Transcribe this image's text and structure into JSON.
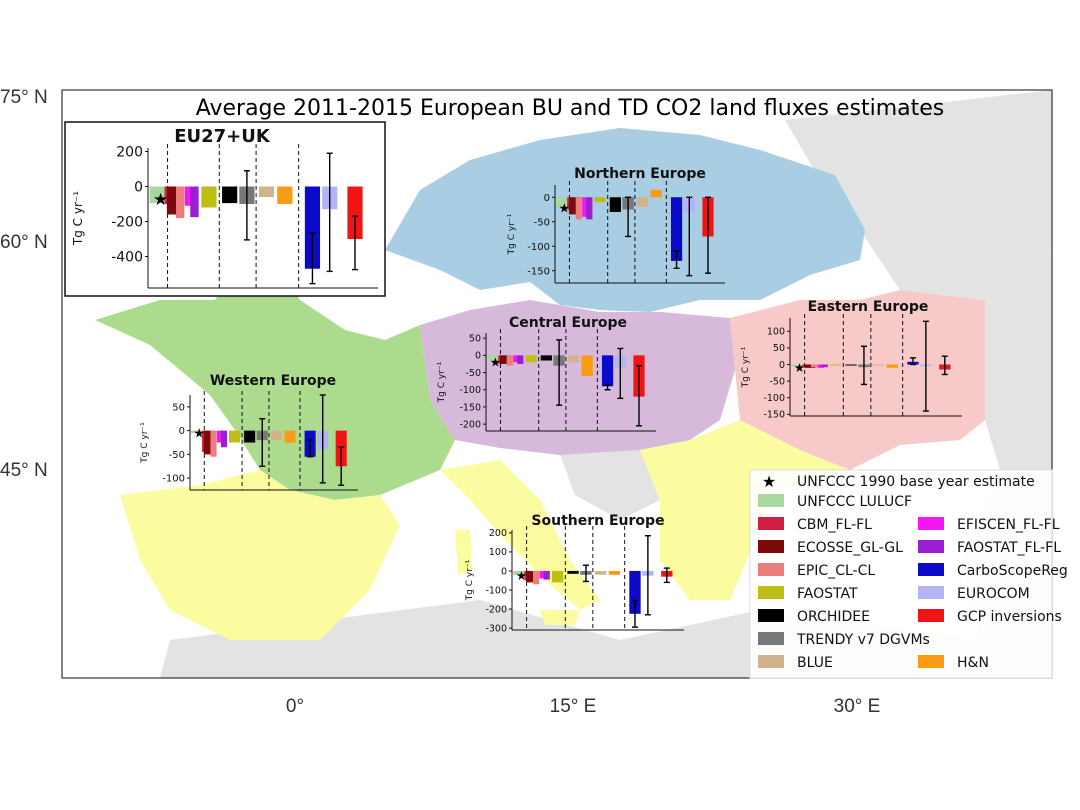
{
  "colors": {
    "ocean": "#ffffff",
    "outside": "#e3e3e3",
    "regions": {
      "Northern Europe": "#a9cde3",
      "Central Europe": "#d7b9dc",
      "Eastern Europe": "#f7c9c9",
      "Western Europe": "#addb8e",
      "Southern Europe": "#fbfba0"
    }
  },
  "map": {
    "title": "Average 2011-2015 European BU and TD CO2 land fluxes estimates",
    "lat_labels": [
      "75° N",
      "60° N",
      "45° N"
    ],
    "lon_labels": [
      "0°",
      "15° E",
      "30° E"
    ]
  },
  "legend": {
    "star_label": "UNFCCC 1990 base year estimate",
    "items": [
      {
        "label": "UNFCCC LULUCF",
        "color": "#a8d8a0"
      },
      {
        "label": "CBM_FL-FL",
        "color": "#d21e46"
      },
      {
        "label": "EFISCEN_FL-FL",
        "color": "#f516f5"
      },
      {
        "label": "ECOSSE_GL-GL",
        "color": "#7d0a0a"
      },
      {
        "label": "FAOSTAT_FL-FL",
        "color": "#9a1ed2"
      },
      {
        "label": "EPIC_CL-CL",
        "color": "#eb7d7d"
      },
      {
        "label": "CarboScopeReg",
        "color": "#0a0ac8"
      },
      {
        "label": "FAOSTAT",
        "color": "#bebe14"
      },
      {
        "label": "EUROCOM",
        "color": "#b4b4f5"
      },
      {
        "label": "ORCHIDEE",
        "color": "#000000"
      },
      {
        "label": "GCP inversions",
        "color": "#f01414"
      },
      {
        "label": "TRENDY v7 DGVMs",
        "color": "#787878"
      },
      {
        "label": "BLUE",
        "color": "#d2b48c"
      },
      {
        "label": "H&N",
        "color": "#fa9b14"
      }
    ]
  },
  "chart_data": [
    {
      "type": "bar",
      "title": "EU27+UK",
      "ylabel": "Tg C yr⁻¹",
      "ylim": [
        -580,
        220
      ],
      "yticks": [
        200,
        0,
        -200,
        -400
      ],
      "star": -70,
      "categories": [
        "UNFCCC LULUCF",
        "CBM_FL-FL",
        "ECOSSE_GL-GL",
        "EPIC_CL-CL",
        "EFISCEN_FL-FL",
        "FAOSTAT_FL-FL",
        "FAOSTAT",
        "ORCHIDEE",
        "TRENDY v7 DGVMs",
        "BLUE",
        "H&N",
        "CarboScopeReg",
        "EUROCOM",
        "GCP inversions"
      ],
      "values": [
        -95,
        -100,
        -160,
        -180,
        -110,
        -175,
        -120,
        -95,
        -100,
        -60,
        -100,
        -470,
        -130,
        -300
      ],
      "errors": [
        null,
        null,
        null,
        null,
        null,
        null,
        null,
        null,
        [
          -305,
          90
        ],
        null,
        null,
        [
          -555,
          -265
        ],
        [
          -485,
          190
        ],
        [
          -475,
          -170
        ]
      ]
    },
    {
      "type": "bar",
      "title": "Northern Europe",
      "ylabel": "Tg C yr⁻¹",
      "ylim": [
        -175,
        25
      ],
      "yticks": [
        0,
        -50,
        -100,
        -150
      ],
      "star": -22,
      "categories": [
        "UNFCCC LULUCF",
        "CBM_FL-FL",
        "ECOSSE_GL-GL",
        "EPIC_CL-CL",
        "EFISCEN_FL-FL",
        "FAOSTAT_FL-FL",
        "FAOSTAT",
        "ORCHIDEE",
        "TRENDY v7 DGVMs",
        "BLUE",
        "H&N",
        "CarboScopeReg",
        "EUROCOM",
        "GCP inversions"
      ],
      "values": [
        -22,
        -25,
        -35,
        -45,
        -40,
        -45,
        -10,
        -30,
        -25,
        -20,
        15,
        -130,
        -30,
        -80
      ],
      "errors": [
        null,
        null,
        null,
        null,
        null,
        null,
        null,
        null,
        [
          -80,
          0
        ],
        null,
        null,
        [
          -145,
          -110
        ],
        [
          -160,
          0
        ],
        [
          -155,
          0
        ]
      ]
    },
    {
      "type": "bar",
      "title": "Central Europe",
      "ylabel": "Tg C yr⁻¹",
      "ylim": [
        -220,
        65
      ],
      "yticks": [
        50,
        0,
        -50,
        -100,
        -150,
        -200
      ],
      "star": -20,
      "categories": [
        "UNFCCC LULUCF",
        "CBM_FL-FL",
        "ECOSSE_GL-GL",
        "EPIC_CL-CL",
        "EFISCEN_FL-FL",
        "FAOSTAT_FL-FL",
        "FAOSTAT",
        "ORCHIDEE",
        "TRENDY v7 DGVMs",
        "BLUE",
        "H&N",
        "CarboScopeReg",
        "EUROCOM",
        "GCP inversions"
      ],
      "values": [
        -15,
        -25,
        -25,
        -30,
        -20,
        -25,
        -20,
        -15,
        -30,
        -20,
        -60,
        -90,
        -35,
        -120
      ],
      "errors": [
        null,
        null,
        null,
        null,
        null,
        null,
        null,
        null,
        [
          -145,
          45
        ],
        null,
        null,
        [
          -100,
          -85
        ],
        [
          -125,
          20
        ],
        [
          -205,
          -30
        ]
      ]
    },
    {
      "type": "bar",
      "title": "Eastern Europe",
      "ylabel": "Tg C yr⁻¹",
      "ylim": [
        -155,
        140
      ],
      "yticks": [
        100,
        50,
        0,
        -50,
        -100,
        -150
      ],
      "star": -10,
      "categories": [
        "UNFCCC LULUCF",
        "CBM_FL-FL",
        "ECOSSE_GL-GL",
        "EPIC_CL-CL",
        "EFISCEN_FL-FL",
        "FAOSTAT_FL-FL",
        "FAOSTAT",
        "ORCHIDEE",
        "TRENDY v7 DGVMs",
        "BLUE",
        "H&N",
        "CarboScopeReg",
        "EUROCOM",
        "GCP inversions"
      ],
      "values": [
        -5,
        -8,
        -10,
        -8,
        -10,
        -8,
        -3,
        -3,
        -8,
        -3,
        -10,
        8,
        -5,
        -15
      ],
      "errors": [
        null,
        null,
        null,
        null,
        null,
        null,
        null,
        null,
        [
          -60,
          55
        ],
        null,
        null,
        [
          0,
          20
        ],
        [
          -140,
          130
        ],
        [
          -30,
          25
        ]
      ]
    },
    {
      "type": "bar",
      "title": "Western Europe",
      "ylabel": "Tg C yr⁻¹",
      "ylim": [
        -125,
        75
      ],
      "yticks": [
        50,
        0,
        -50,
        -100
      ],
      "star": -5,
      "categories": [
        "UNFCCC LULUCF",
        "CBM_FL-FL",
        "ECOSSE_GL-GL",
        "EPIC_CL-CL",
        "EFISCEN_FL-FL",
        "FAOSTAT_FL-FL",
        "FAOSTAT",
        "ORCHIDEE",
        "TRENDY v7 DGVMs",
        "BLUE",
        "H&N",
        "CarboScopeReg",
        "EUROCOM",
        "GCP inversions"
      ],
      "values": [
        -5,
        -45,
        -50,
        -55,
        -25,
        -35,
        -25,
        -25,
        -20,
        -20,
        -25,
        -55,
        -40,
        -75
      ],
      "errors": [
        null,
        null,
        null,
        null,
        null,
        null,
        null,
        null,
        [
          -75,
          25
        ],
        null,
        null,
        [
          -55,
          -20
        ],
        [
          -110,
          75
        ],
        [
          -115,
          -35
        ]
      ]
    },
    {
      "type": "bar",
      "title": "Southern Europe",
      "ylabel": "Tg C yr⁻¹",
      "ylim": [
        -310,
        215
      ],
      "yticks": [
        200,
        100,
        0,
        -100,
        -200,
        -300
      ],
      "star": -25,
      "categories": [
        "UNFCCC LULUCF",
        "CBM_FL-FL",
        "ECOSSE_GL-GL",
        "EPIC_CL-CL",
        "EFISCEN_FL-FL",
        "FAOSTAT_FL-FL",
        "FAOSTAT",
        "ORCHIDEE",
        "TRENDY v7 DGVMs",
        "BLUE",
        "H&N",
        "CarboScopeReg",
        "EUROCOM",
        "GCP inversions"
      ],
      "values": [
        -20,
        -50,
        -60,
        -70,
        -40,
        -45,
        -60,
        -15,
        -20,
        -20,
        -20,
        -225,
        -25,
        -30
      ],
      "errors": [
        null,
        null,
        null,
        null,
        null,
        null,
        null,
        null,
        [
          -55,
          30
        ],
        null,
        null,
        [
          -295,
          -155
        ],
        [
          -230,
          185
        ],
        [
          -60,
          15
        ]
      ]
    }
  ]
}
